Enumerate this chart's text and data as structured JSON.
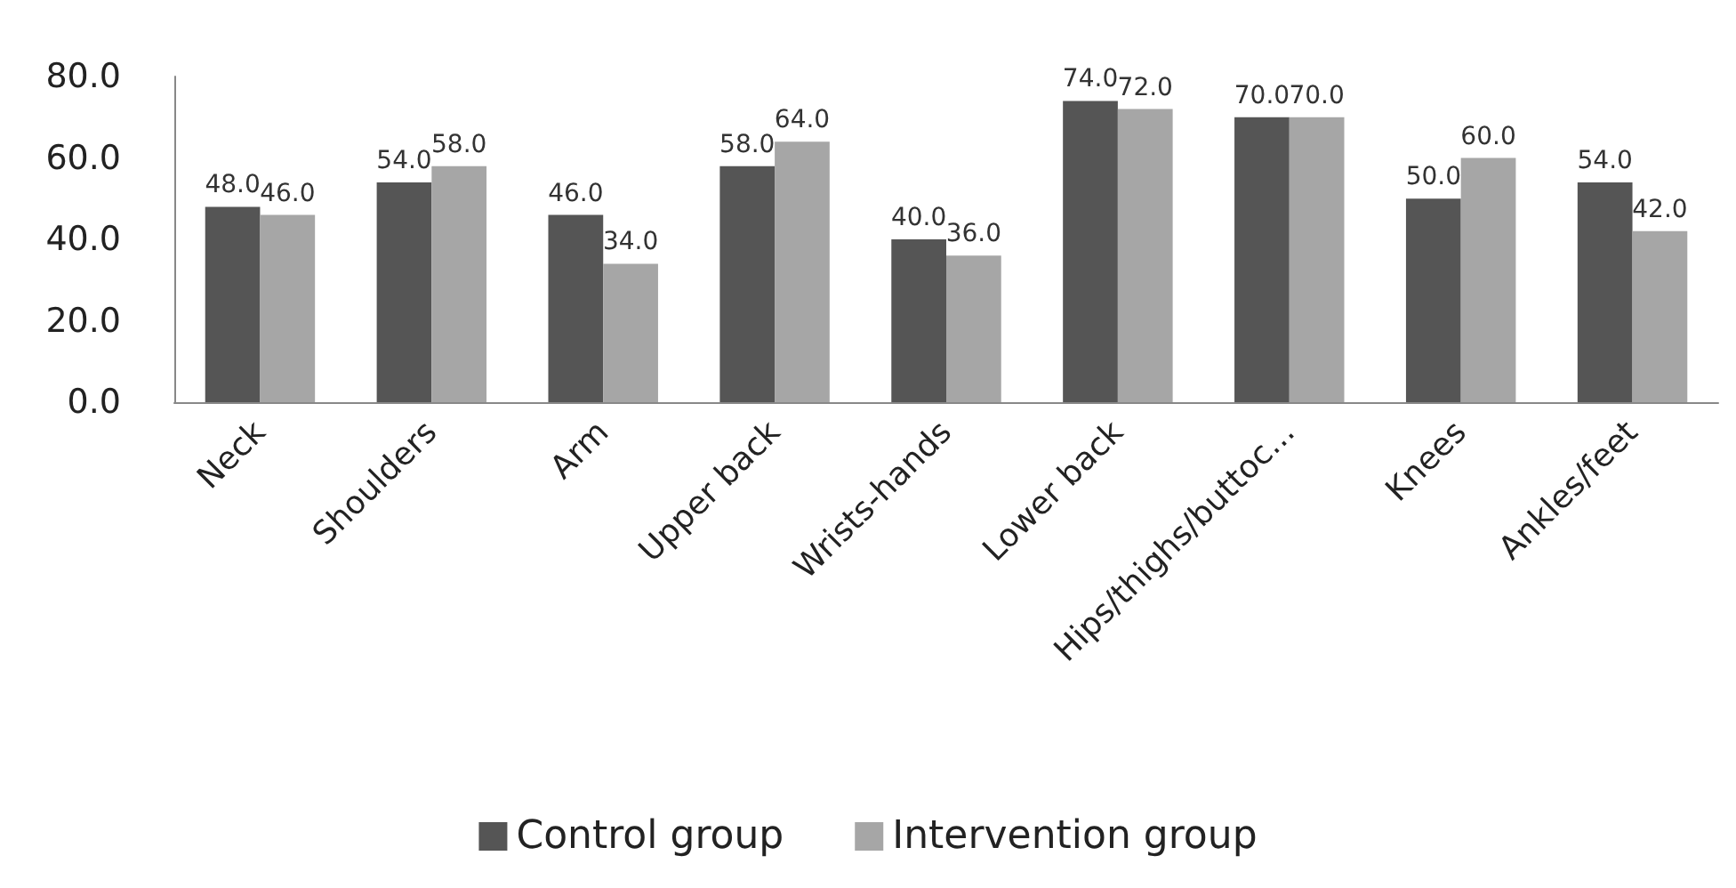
{
  "chart_data": {
    "type": "bar",
    "categories": [
      "Neck",
      "Shoulders",
      "Arm",
      "Upper back",
      "Wrists-hands",
      "Lower back",
      "Hips/thighs/buttoc...",
      "Knees",
      "Ankles/feet"
    ],
    "series": [
      {
        "name": "Control group",
        "color": "#555555",
        "values": [
          48,
          54,
          46,
          58,
          40,
          74,
          70,
          50,
          54
        ],
        "value_labels": [
          "48.0",
          "54.0",
          "46.0",
          "58.0",
          "40.0",
          "74.0",
          "70.0",
          "50.0",
          "54.0"
        ]
      },
      {
        "name": "Intervention group",
        "color": "#a6a6a6",
        "values": [
          46,
          58,
          34,
          64,
          36,
          72,
          70,
          60,
          42
        ],
        "value_labels": [
          "46.0",
          "58.0",
          "34.0",
          "64.0",
          "36.0",
          "72.0",
          "70.0",
          "60.0",
          "42.0"
        ]
      }
    ],
    "ylim": [
      0,
      80
    ],
    "yticks": [
      {
        "value": 0,
        "label": "0.0"
      },
      {
        "value": 20,
        "label": "20.0"
      },
      {
        "value": 40,
        "label": "40.0"
      },
      {
        "value": 60,
        "label": "60.0"
      },
      {
        "value": 80,
        "label": "80.0"
      }
    ],
    "grid": false,
    "legend": "bottom"
  }
}
